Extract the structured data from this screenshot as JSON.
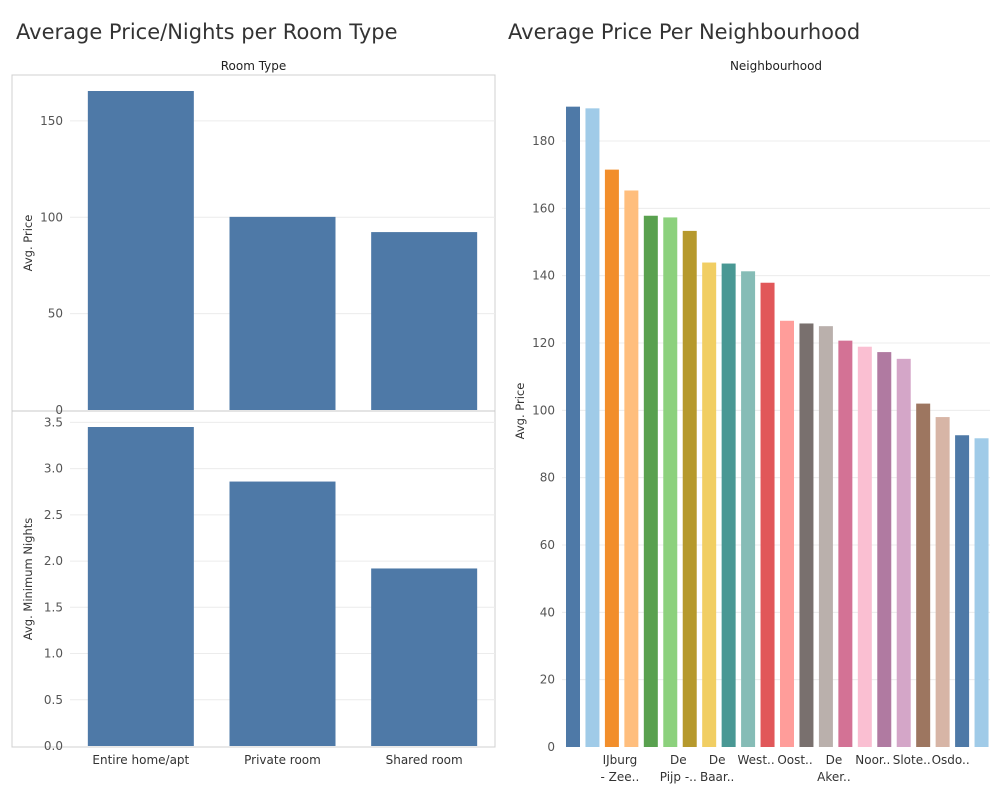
{
  "left_title": "Average Price/Nights per Room Type",
  "right_title": "Average Price Per Neighbourhood",
  "chart_data": [
    {
      "type": "bar",
      "title": "Average Price/Nights per Room Type",
      "header": "Room Type",
      "categories": [
        "Entire home/apt",
        "Private room",
        "Shared room"
      ],
      "color": "#4e79a7",
      "panels": [
        {
          "ylabel": "Avg. Price",
          "values": [
            165.5,
            100.2,
            92.3
          ],
          "ylim": [
            0,
            170
          ],
          "yticks": [
            0,
            50,
            100,
            150
          ],
          "ytick_labels": [
            "0",
            "50",
            "100",
            "150"
          ]
        },
        {
          "ylabel": "Avg. Minimum Nights",
          "values": [
            3.45,
            2.86,
            1.92
          ],
          "ylim": [
            0,
            3.5
          ],
          "yticks": [
            0,
            0.5,
            1.0,
            1.5,
            2.0,
            2.5,
            3.0,
            3.5
          ],
          "ytick_labels": [
            "0.0",
            "0.5",
            "1.0",
            "1.5",
            "2.0",
            "2.5",
            "3.0",
            "3.5"
          ]
        }
      ],
      "grid": true
    },
    {
      "type": "bar",
      "title": "Average Price Per Neighbourhood",
      "header": "Neighbourhood",
      "ylabel": "Avg. Price",
      "ylim": [
        0,
        195
      ],
      "yticks": [
        0,
        20,
        40,
        60,
        80,
        100,
        120,
        140,
        160,
        180
      ],
      "grid": true,
      "categories": [
        "",
        "",
        "IJburg - Zee..",
        "",
        "",
        "De Pijp -..",
        "",
        "De Baar..",
        "",
        "West..",
        "",
        "Oost..",
        "",
        "De Aker..",
        "",
        "Noor..",
        "",
        "Slote..",
        "",
        "Osdo..",
        "",
        ""
      ],
      "values": [
        190.2,
        189.7,
        171.5,
        165.3,
        157.8,
        157.3,
        153.3,
        143.9,
        143.6,
        141.3,
        137.9,
        126.6,
        125.8,
        125.0,
        120.7,
        118.9,
        117.3,
        115.3,
        102.0,
        98.0,
        92.6,
        91.7
      ],
      "colors": [
        "#4e79a7",
        "#a0cbe8",
        "#f28e2b",
        "#ffbe7d",
        "#59a14f",
        "#8cd17d",
        "#b6992d",
        "#f1ce63",
        "#499894",
        "#86bcb6",
        "#e15759",
        "#ff9d9a",
        "#79706e",
        "#bab0ac",
        "#d37295",
        "#fabfd2",
        "#b07aa1",
        "#d4a6c8",
        "#9d7660",
        "#d7b5a6",
        "#4e79a7",
        "#a0cbe8"
      ]
    }
  ]
}
